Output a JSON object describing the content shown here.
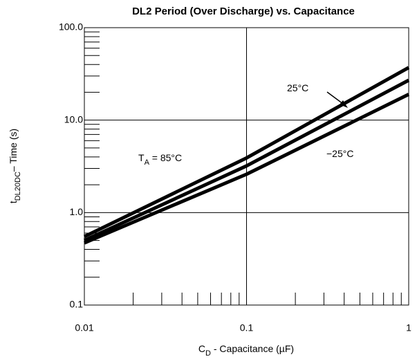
{
  "chart_data": {
    "type": "line",
    "title": "DL2 Period (Over Discharge) vs. Capacitance",
    "x_label": [
      "C",
      "D",
      " - Capacitance  (µF)"
    ],
    "y_label": [
      "t",
      "DL20DC",
      "– Time (s)"
    ],
    "x": [
      0.01,
      0.1,
      1
    ],
    "series": [
      {
        "color": "#000000",
        "values": [
          0.55,
          3.9,
          37
        ]
      },
      {
        "color": "#000000",
        "values": [
          0.5,
          3.2,
          27
        ]
      },
      {
        "color": "#000000",
        "values": [
          0.47,
          2.6,
          19
        ]
      }
    ],
    "xlim": [
      0.01,
      1
    ],
    "ylim": [
      0.1,
      100
    ],
    "log_x": true,
    "log_y": true,
    "grid": true,
    "xticks": [
      0.01,
      0.1,
      1
    ],
    "yticks": [
      0.1,
      {
        "value": 1,
        "label": "1.0"
      },
      {
        "value": 10,
        "label": "10.0"
      },
      {
        "value": 100,
        "label": "100.0"
      }
    ],
    "xminor_ticks": [
      0.02,
      0.03,
      0.04,
      0.05,
      0.06,
      0.07,
      0.08,
      0.09,
      0.2,
      0.3,
      0.4,
      0.5,
      0.6,
      0.7,
      0.8,
      0.9
    ],
    "yminor_ticks": [
      0.2,
      0.3,
      0.4,
      0.5,
      0.6,
      0.7,
      0.8,
      0.9,
      2,
      3,
      4,
      5,
      6,
      7,
      8,
      9,
      20,
      30,
      40,
      50,
      60,
      70,
      80,
      90
    ],
    "annotations": [
      [
        "25°C"
      ],
      [
        "T",
        "A",
        " = 85°C"
      ],
      [
        "−25°C"
      ]
    ]
  }
}
